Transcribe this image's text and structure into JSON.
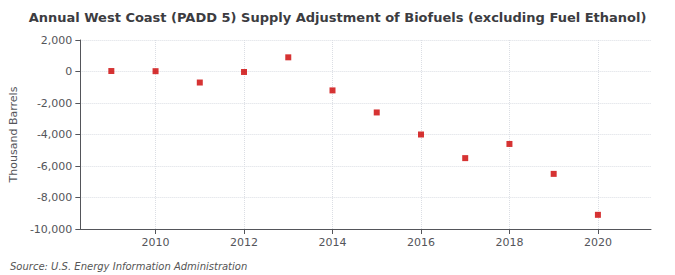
{
  "chart_data": {
    "type": "scatter",
    "title": "Annual West Coast (PADD 5) Supply Adjustment of Biofuels (excluding Fuel Ethanol)",
    "ylabel": "Thousand Barrels",
    "annotations": [
      "Source: U.S. Energy Information Administration"
    ],
    "x": [
      2009,
      2010,
      2011,
      2012,
      2013,
      2014,
      2015,
      2016,
      2017,
      2018,
      2019,
      2020
    ],
    "values": [
      30,
      20,
      -700,
      -30,
      900,
      -1200,
      -2600,
      -4000,
      -5500,
      -4600,
      -6500,
      -9100
    ],
    "color": "#cc0000",
    "marker": "square",
    "xlim": [
      2008.3,
      2021.2
    ],
    "xticks": [
      2010,
      2012,
      2014,
      2016,
      2018,
      2020
    ],
    "ylim": [
      -10000,
      2000
    ],
    "yticks": [
      {
        "value": -10000,
        "label": "-10,000"
      },
      {
        "value": -8000,
        "label": "-8,000"
      },
      {
        "value": -6000,
        "label": "-6,000"
      },
      {
        "value": -4000,
        "label": "-4,000"
      },
      {
        "value": -2000,
        "label": "-2,000"
      },
      0,
      {
        "value": 2000,
        "label": "2,000"
      }
    ],
    "grid": true
  }
}
